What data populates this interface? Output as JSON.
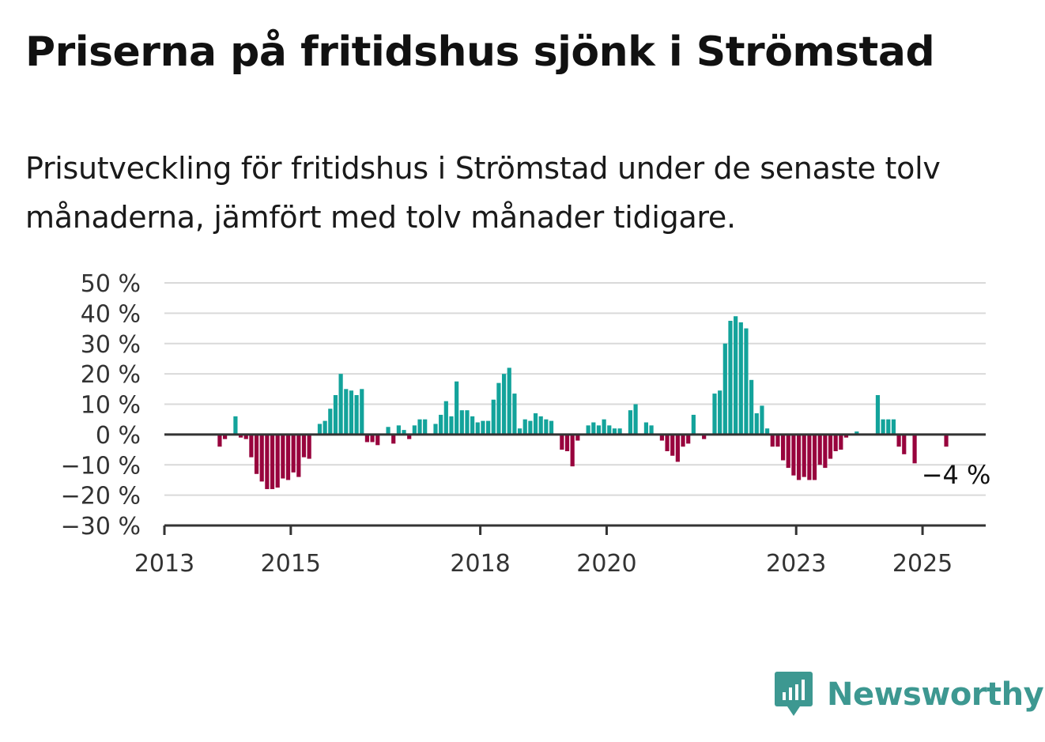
{
  "title": "Priserna på fritidshus sjönk i Strömstad",
  "subtitle": "Prisutveckling för fritidshus i Strömstad under de senaste tolv månaderna, jämfört med tolv månader tidigare.",
  "brand": {
    "name": "Newsworthy",
    "icon": "newsworthy-logo-icon"
  },
  "colors": {
    "positive": "#13a39b",
    "negative": "#98033d",
    "grid": "#d9d9d9",
    "axis": "#333333",
    "brand": "#3d9891"
  },
  "chart_data": {
    "type": "bar",
    "title": "",
    "xlabel": "",
    "ylabel": "",
    "ylim": [
      -30,
      50
    ],
    "y_ticks": [
      50,
      40,
      30,
      20,
      10,
      0,
      -10,
      -20,
      -30
    ],
    "y_tick_labels": [
      "50 %",
      "40 %",
      "30 %",
      "20 %",
      "10 %",
      "0 %",
      "−10 %",
      "−20 %",
      "−30 %"
    ],
    "x_tick_labels": [
      "2013",
      "2015",
      "2018",
      "2020",
      "2023",
      "2025"
    ],
    "x_ticks": [
      "2013-01",
      "2015-01",
      "2018-01",
      "2020-01",
      "2023-01",
      "2025-01"
    ],
    "x_range": [
      "2013-01",
      "2026-01"
    ],
    "grid": true,
    "annotation": {
      "text": "−4 %",
      "x": "2025-05",
      "value": -4
    },
    "series": [
      {
        "x": [
          "2013-01",
          "2013-02",
          "2013-03",
          "2013-04",
          "2013-05",
          "2013-06",
          "2013-07",
          "2013-08",
          "2013-09",
          "2013-10",
          "2013-11",
          "2013-12",
          "2014-01",
          "2014-02",
          "2014-03",
          "2014-04",
          "2014-05",
          "2014-06",
          "2014-07",
          "2014-08",
          "2014-09",
          "2014-10",
          "2014-11",
          "2014-12",
          "2015-01",
          "2015-02",
          "2015-03",
          "2015-04",
          "2015-05",
          "2015-06",
          "2015-07",
          "2015-08",
          "2015-09",
          "2015-10",
          "2015-11",
          "2015-12",
          "2016-01",
          "2016-02",
          "2016-03",
          "2016-04",
          "2016-05",
          "2016-06",
          "2016-07",
          "2016-08",
          "2016-09",
          "2016-10",
          "2016-11",
          "2016-12",
          "2017-01",
          "2017-02",
          "2017-03",
          "2017-04",
          "2017-05",
          "2017-06",
          "2017-07",
          "2017-08",
          "2017-09",
          "2017-10",
          "2017-11",
          "2017-12",
          "2018-01",
          "2018-02",
          "2018-03",
          "2018-04",
          "2018-05",
          "2018-06",
          "2018-07",
          "2018-08",
          "2018-09",
          "2018-10",
          "2018-11",
          "2018-12",
          "2019-01",
          "2019-02",
          "2019-03",
          "2019-04",
          "2019-05",
          "2019-06",
          "2019-07",
          "2019-08",
          "2019-09",
          "2019-10",
          "2019-11",
          "2019-12",
          "2020-01",
          "2020-02",
          "2020-03",
          "2020-04",
          "2020-05",
          "2020-06",
          "2020-07",
          "2020-08",
          "2020-09",
          "2020-10",
          "2020-11",
          "2020-12",
          "2021-01",
          "2021-02",
          "2021-03",
          "2021-04",
          "2021-05",
          "2021-06",
          "2021-07",
          "2021-08",
          "2021-09",
          "2021-10",
          "2021-11",
          "2021-12",
          "2022-01",
          "2022-02",
          "2022-03",
          "2022-04",
          "2022-05",
          "2022-06",
          "2022-07",
          "2022-08",
          "2022-09",
          "2022-10",
          "2022-11",
          "2022-12",
          "2023-01",
          "2023-02",
          "2023-03",
          "2023-04",
          "2023-05",
          "2023-06",
          "2023-07",
          "2023-08",
          "2023-09",
          "2023-10",
          "2023-11",
          "2023-12",
          "2024-01",
          "2024-02",
          "2024-03",
          "2024-04",
          "2024-05",
          "2024-06",
          "2024-07",
          "2024-08",
          "2024-09",
          "2024-10",
          "2024-11",
          "2024-12",
          "2025-01",
          "2025-02",
          "2025-03",
          "2025-04",
          "2025-05"
        ],
        "values": [
          null,
          null,
          null,
          null,
          null,
          null,
          null,
          null,
          null,
          null,
          -4,
          -1.5,
          null,
          6,
          -1,
          -1.5,
          -7.5,
          -13,
          -15.5,
          -18,
          -18,
          -17.5,
          -14.5,
          -15,
          -12.5,
          -14,
          -7.5,
          -8,
          null,
          3.5,
          4.5,
          8.5,
          13,
          20,
          15,
          14.5,
          13,
          15,
          -2.5,
          -2.5,
          -3.5,
          null,
          2.5,
          -3,
          3,
          1.5,
          -1.5,
          3,
          5,
          5,
          null,
          3.5,
          6.5,
          11,
          6,
          17.5,
          8,
          8,
          6,
          4,
          4.5,
          4.5,
          11.5,
          17,
          20,
          22,
          13.5,
          2,
          5,
          4.5,
          7,
          6,
          5,
          4.5,
          null,
          -5,
          -5.5,
          -10.5,
          -2,
          null,
          3,
          4,
          3,
          5,
          3,
          2,
          2,
          null,
          8,
          10,
          null,
          4,
          3,
          null,
          -2,
          -5.5,
          -7,
          -9,
          -4,
          -3,
          6.5,
          null,
          -1.5,
          null,
          13.5,
          14.5,
          30,
          37.5,
          39,
          37,
          35,
          18,
          7,
          9.5,
          2,
          -4,
          -4,
          -8.5,
          -11,
          -13.5,
          -15,
          -14,
          -15,
          -15,
          -10,
          -11,
          -8,
          -5.5,
          -5,
          -1,
          null,
          1,
          null,
          null,
          null,
          13,
          5,
          5,
          5,
          -4,
          -6.5,
          null,
          -9.5,
          null,
          null,
          null,
          null,
          null,
          -4
        ]
      }
    ]
  }
}
